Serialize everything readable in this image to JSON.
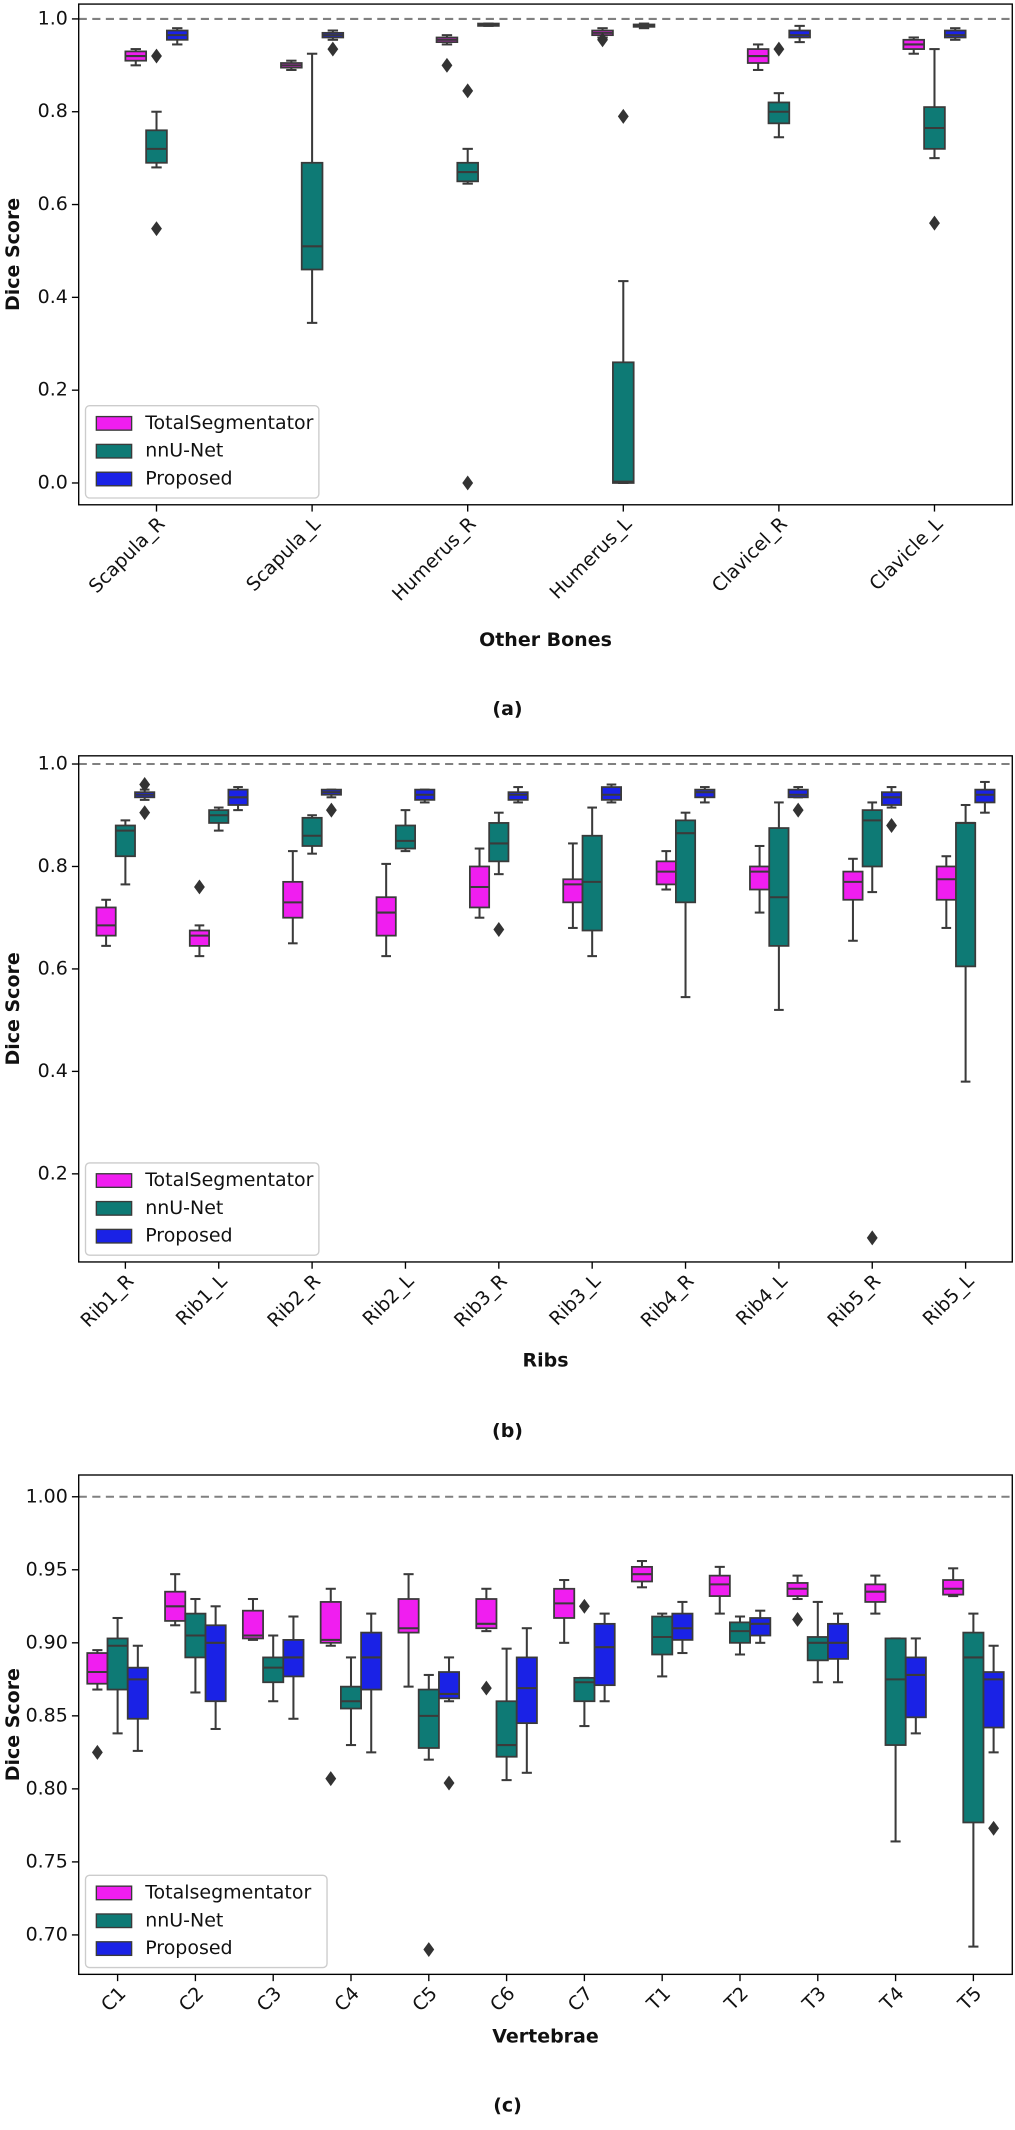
{
  "chart_data": [
    {
      "type": "box",
      "caption": "(a)",
      "xlabel": "Other Bones",
      "ylabel": "Dice Score",
      "categories": [
        "Scapula_R",
        "Scapula_L",
        "Humerus_R",
        "Humerus_L",
        "Clavicel_R",
        "Clavicle_L"
      ],
      "ylim": [
        -0.047,
        1.032
      ],
      "yticks": [
        {
          "value": 0,
          "label": "0.0"
        },
        0.2,
        0.4,
        0.6,
        0.8,
        {
          "value": 1,
          "label": "1.0"
        }
      ],
      "reference_line": 1,
      "legend": "lower left",
      "series": [
        {
          "name": "TotalSegmentator",
          "color": "#f01ef0",
          "values": [
            [
              0.9,
              0.91,
              0.92,
              0.93,
              0.935
            ],
            [
              0.89,
              0.895,
              0.9,
              0.905,
              0.91
            ],
            [
              0.945,
              0.95,
              0.955,
              0.96,
              0.965
            ],
            [
              0.96,
              0.965,
              0.97,
              0.975,
              0.98
            ],
            [
              0.89,
              0.905,
              0.92,
              0.935,
              0.945
            ],
            [
              0.925,
              0.935,
              0.945,
              0.955,
              0.96
            ]
          ],
          "outliers": [
            [],
            [],
            [
              0.9
            ],
            [
              0.955
            ],
            [],
            []
          ]
        },
        {
          "name": "nnU-Net",
          "color": "#0e7a75",
          "values": [
            [
              0.68,
              0.69,
              0.72,
              0.76,
              0.8
            ],
            [
              0.345,
              0.46,
              0.51,
              0.69,
              0.925
            ],
            [
              0.645,
              0.65,
              0.67,
              0.69,
              0.72
            ],
            [
              0,
              0,
              0.003,
              0.26,
              0.435
            ],
            [
              0.745,
              0.775,
              0.8,
              0.82,
              0.84
            ],
            [
              0.7,
              0.72,
              0.765,
              0.81,
              0.935
            ]
          ],
          "outliers": [
            [
              0.92,
              0.548
            ],
            [],
            [
              0.845,
              0
            ],
            [
              0.79
            ],
            [
              0.935
            ],
            [
              0.56
            ]
          ]
        },
        {
          "name": "Proposed",
          "color": "#1a22e6",
          "values": [
            [
              0.945,
              0.955,
              0.965,
              0.975,
              0.98
            ],
            [
              0.955,
              0.96,
              0.965,
              0.97,
              0.975
            ],
            [
              0.985,
              0.985,
              0.987,
              0.99,
              0.99
            ],
            [
              0.98,
              0.983,
              0.985,
              0.988,
              0.99
            ],
            [
              0.95,
              0.96,
              0.965,
              0.975,
              0.985
            ],
            [
              0.955,
              0.96,
              0.965,
              0.975,
              0.98
            ]
          ],
          "outliers": [
            [],
            [
              0.935
            ],
            [],
            [],
            [],
            []
          ]
        }
      ]
    },
    {
      "type": "box",
      "caption": "(b)",
      "xlabel": "Ribs",
      "ylabel": "Dice Score",
      "categories": [
        "Rib1_R",
        "Rib1_L",
        "Rib2_R",
        "Rib2_L",
        "Rib3_R",
        "Rib3_L",
        "Rib4_R",
        "Rib4_L",
        "Rib5_R",
        "Rib5_L"
      ],
      "ylim": [
        0.028,
        1.016
      ],
      "yticks": [
        0.2,
        0.4,
        0.6,
        0.8,
        {
          "value": 1,
          "label": "1.0"
        }
      ],
      "reference_line": 1,
      "legend": "lower left",
      "series": [
        {
          "name": "TotalSegmentator",
          "color": "#f01ef0",
          "values": [
            [
              0.645,
              0.665,
              0.685,
              0.72,
              0.735
            ],
            [
              0.625,
              0.645,
              0.665,
              0.675,
              0.685
            ],
            [
              0.65,
              0.7,
              0.73,
              0.77,
              0.83
            ],
            [
              0.625,
              0.665,
              0.71,
              0.74,
              0.805
            ],
            [
              0.7,
              0.72,
              0.76,
              0.8,
              0.835
            ],
            [
              0.68,
              0.73,
              0.765,
              0.775,
              0.845
            ],
            [
              0.755,
              0.765,
              0.79,
              0.81,
              0.83
            ],
            [
              0.71,
              0.755,
              0.79,
              0.8,
              0.84
            ],
            [
              0.655,
              0.735,
              0.77,
              0.79,
              0.815
            ],
            [
              0.68,
              0.735,
              0.775,
              0.8,
              0.82
            ]
          ],
          "outliers": [
            [],
            [
              0.76
            ],
            [],
            [],
            [],
            [],
            [],
            [],
            [],
            []
          ]
        },
        {
          "name": "nnU-Net",
          "color": "#0e7a75",
          "values": [
            [
              0.765,
              0.82,
              0.87,
              0.88,
              0.89
            ],
            [
              0.87,
              0.885,
              0.9,
              0.91,
              0.915
            ],
            [
              0.825,
              0.84,
              0.86,
              0.895,
              0.9
            ],
            [
              0.83,
              0.835,
              0.85,
              0.88,
              0.91
            ],
            [
              0.785,
              0.81,
              0.845,
              0.885,
              0.905
            ],
            [
              0.625,
              0.675,
              0.77,
              0.86,
              0.915
            ],
            [
              0.545,
              0.73,
              0.865,
              0.89,
              0.905
            ],
            [
              0.52,
              0.645,
              0.74,
              0.875,
              0.925
            ],
            [
              0.75,
              0.8,
              0.89,
              0.91,
              0.925
            ],
            [
              0.38,
              0.605,
              0.885,
              0.885,
              0.92
            ]
          ],
          "outliers": [
            [],
            [],
            [],
            [],
            [
              0.677
            ],
            [],
            [],
            [],
            [
              0.075
            ],
            []
          ]
        },
        {
          "name": "Proposed",
          "color": "#1a22e6",
          "values": [
            [
              0.93,
              0.935,
              0.94,
              0.945,
              0.95
            ],
            [
              0.91,
              0.92,
              0.935,
              0.95,
              0.955
            ],
            [
              0.935,
              0.94,
              0.945,
              0.95,
              0.95
            ],
            [
              0.925,
              0.93,
              0.94,
              0.95,
              0.95
            ],
            [
              0.925,
              0.93,
              0.94,
              0.945,
              0.955
            ],
            [
              0.925,
              0.93,
              0.94,
              0.955,
              0.96
            ],
            [
              0.925,
              0.935,
              0.945,
              0.95,
              0.955
            ],
            [
              0.935,
              0.935,
              0.94,
              0.95,
              0.955
            ],
            [
              0.915,
              0.92,
              0.935,
              0.945,
              0.955
            ],
            [
              0.905,
              0.925,
              0.94,
              0.95,
              0.965
            ]
          ],
          "outliers": [
            [
              0.96,
              0.905
            ],
            [],
            [
              0.91
            ],
            [],
            [],
            [],
            [],
            [
              0.91
            ],
            [
              0.88
            ],
            []
          ]
        }
      ]
    },
    {
      "type": "box",
      "caption": "(c)",
      "xlabel": "Vertebrae",
      "ylabel": "Dice Score",
      "categories": [
        "C1",
        "C2",
        "C3",
        "C4",
        "C5",
        "C6",
        "C7",
        "T1",
        "T2",
        "T3",
        "T4",
        "T5"
      ],
      "ylim": [
        0.673,
        1.0149
      ],
      "yticks": [
        {
          "value": 0.7,
          "label": "0.70"
        },
        0.75,
        {
          "value": 0.8,
          "label": "0.80"
        },
        0.85,
        {
          "value": 0.9,
          "label": "0.90"
        },
        0.95,
        {
          "value": 1,
          "label": "1.00"
        }
      ],
      "reference_line": 1,
      "legend": "lower left",
      "series": [
        {
          "name": "Totalsegmentator",
          "color": "#f01ef0",
          "values": [
            [
              0.868,
              0.872,
              0.88,
              0.893,
              0.895
            ],
            [
              0.912,
              0.915,
              0.925,
              0.935,
              0.947
            ],
            [
              0.902,
              0.903,
              0.905,
              0.922,
              0.93
            ],
            [
              0.898,
              0.9,
              0.902,
              0.928,
              0.937
            ],
            [
              0.87,
              0.907,
              0.91,
              0.93,
              0.947
            ],
            [
              0.908,
              0.91,
              0.913,
              0.93,
              0.937
            ],
            [
              0.9,
              0.917,
              0.927,
              0.937,
              0.943
            ],
            [
              0.938,
              0.942,
              0.947,
              0.952,
              0.956
            ],
            [
              0.92,
              0.932,
              0.94,
              0.946,
              0.952
            ],
            [
              0.93,
              0.932,
              0.937,
              0.941,
              0.946
            ],
            [
              0.92,
              0.928,
              0.935,
              0.94,
              0.946
            ],
            [
              0.932,
              0.933,
              0.937,
              0.943,
              0.951
            ]
          ],
          "outliers": [
            [
              0.825
            ],
            [],
            [],
            [
              0.807
            ],
            [],
            [
              0.869
            ],
            [],
            [],
            [],
            [
              0.916
            ],
            [],
            []
          ]
        },
        {
          "name": "nnU-Net",
          "color": "#0e7a75",
          "values": [
            [
              0.838,
              0.868,
              0.898,
              0.903,
              0.917
            ],
            [
              0.866,
              0.89,
              0.905,
              0.92,
              0.93
            ],
            [
              0.86,
              0.873,
              0.883,
              0.89,
              0.905
            ],
            [
              0.83,
              0.855,
              0.86,
              0.87,
              0.89
            ],
            [
              0.82,
              0.828,
              0.85,
              0.868,
              0.878
            ],
            [
              0.806,
              0.822,
              0.83,
              0.86,
              0.896
            ],
            [
              0.843,
              0.86,
              0.873,
              0.876,
              0.876
            ],
            [
              0.877,
              0.892,
              0.904,
              0.918,
              0.92
            ],
            [
              0.892,
              0.9,
              0.908,
              0.914,
              0.918
            ],
            [
              0.873,
              0.888,
              0.9,
              0.904,
              0.928
            ],
            [
              0.764,
              0.83,
              0.875,
              0.903,
              0.903
            ],
            [
              0.692,
              0.777,
              0.89,
              0.907,
              0.92
            ]
          ],
          "outliers": [
            [],
            [],
            [],
            [],
            [
              0.69
            ],
            [],
            [
              0.925
            ],
            [],
            [],
            [],
            [],
            []
          ]
        },
        {
          "name": "Proposed",
          "color": "#1a22e6",
          "values": [
            [
              0.826,
              0.848,
              0.875,
              0.883,
              0.898
            ],
            [
              0.841,
              0.86,
              0.9,
              0.912,
              0.925
            ],
            [
              0.848,
              0.877,
              0.89,
              0.902,
              0.918
            ],
            [
              0.825,
              0.868,
              0.89,
              0.907,
              0.92
            ],
            [
              0.86,
              0.862,
              0.865,
              0.88,
              0.89
            ],
            [
              0.811,
              0.845,
              0.869,
              0.89,
              0.91
            ],
            [
              0.86,
              0.871,
              0.897,
              0.913,
              0.92
            ],
            [
              0.893,
              0.902,
              0.91,
              0.92,
              0.928
            ],
            [
              0.9,
              0.905,
              0.913,
              0.917,
              0.922
            ],
            [
              0.873,
              0.889,
              0.9,
              0.913,
              0.92
            ],
            [
              0.838,
              0.849,
              0.878,
              0.89,
              0.903
            ],
            [
              0.825,
              0.842,
              0.875,
              0.88,
              0.898
            ]
          ],
          "outliers": [
            [],
            [],
            [],
            [],
            [
              0.804
            ],
            [],
            [],
            [],
            [],
            [],
            [],
            [
              0.773
            ]
          ]
        }
      ]
    }
  ]
}
